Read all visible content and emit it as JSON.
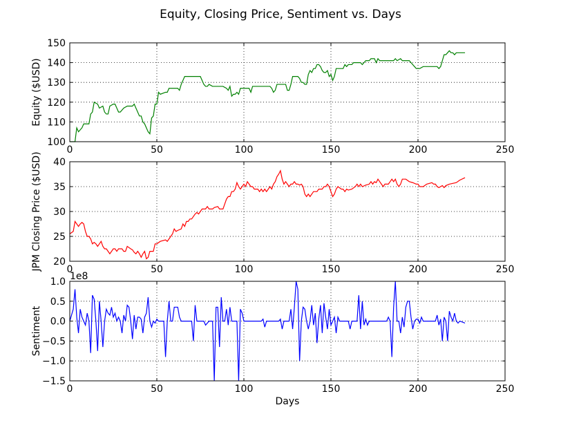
{
  "title": "Equity, Closing Price, Sentiment vs. Days",
  "chart_data": [
    {
      "type": "line",
      "ylabel": "Equity ($USD)",
      "xlim": [
        0,
        250
      ],
      "xticks": [
        0,
        50,
        100,
        150,
        200,
        250
      ],
      "ylim": [
        100,
        150
      ],
      "yticks": [
        100,
        110,
        120,
        130,
        140,
        150
      ],
      "grid": true,
      "series": [
        {
          "color": "#008000",
          "x": [
            0,
            3,
            4,
            5,
            7,
            8,
            11,
            12,
            13,
            14,
            16,
            17,
            19,
            20,
            21,
            22,
            23,
            25,
            26,
            27,
            28,
            29,
            31,
            33,
            36,
            37,
            38,
            40,
            41,
            42,
            43,
            44,
            45,
            46,
            47,
            48,
            49,
            50,
            51,
            52,
            55,
            56,
            57,
            62,
            63,
            64,
            66,
            75,
            76,
            77,
            78,
            79,
            80,
            82,
            88,
            90,
            91,
            92,
            93,
            94,
            95,
            96,
            97,
            98,
            102,
            103,
            104,
            105,
            115,
            116,
            117,
            118,
            119,
            124,
            125,
            126,
            127,
            128,
            131,
            132,
            133,
            134,
            135,
            136,
            137,
            138,
            139,
            140,
            141,
            142,
            143,
            144,
            145,
            146,
            147,
            148,
            149,
            150,
            151,
            152,
            153,
            157,
            158,
            159,
            160,
            162,
            163,
            167,
            168,
            170,
            172,
            173,
            175,
            176,
            177,
            178,
            186,
            187,
            188,
            190,
            191,
            195,
            196,
            197,
            198,
            199,
            200,
            201,
            203,
            210,
            211,
            212,
            213,
            214,
            215,
            216,
            217,
            218,
            219,
            220,
            221,
            222,
            227
          ],
          "values": [
            100,
            100,
            107,
            105,
            107,
            109,
            109,
            114,
            115,
            120,
            119,
            117,
            118,
            115,
            114,
            114,
            118,
            119,
            119,
            117,
            115,
            115,
            117,
            118,
            118,
            119,
            117,
            113,
            113,
            110,
            109,
            107,
            105,
            104,
            112,
            113,
            119,
            119,
            125,
            124,
            125,
            125,
            127,
            127,
            126,
            129,
            133,
            133,
            131,
            129,
            128,
            128,
            129,
            128,
            128,
            127,
            126,
            128,
            123,
            124,
            124,
            125,
            124,
            127,
            127,
            127,
            125,
            128,
            128,
            127,
            125,
            126,
            129,
            129,
            126,
            126,
            129,
            133,
            133,
            132,
            130,
            130,
            129,
            129,
            134,
            136,
            135,
            137,
            137,
            139,
            139,
            138,
            136,
            135,
            135,
            136,
            133,
            134,
            131,
            133,
            137,
            137,
            139,
            138,
            139,
            139,
            140,
            140,
            139,
            141,
            141,
            142,
            142,
            140,
            142,
            141,
            141,
            142,
            141,
            142,
            141,
            141,
            140,
            139,
            138,
            137,
            137,
            137,
            138,
            138,
            138,
            137,
            138,
            141,
            144,
            144,
            145,
            146,
            145,
            145,
            144,
            145,
            145
          ]
        }
      ]
    },
    {
      "type": "line",
      "ylabel": "JPM Closing Price ($USD)",
      "xlim": [
        0,
        250
      ],
      "xticks": [
        0,
        50,
        100,
        150,
        200,
        250
      ],
      "ylim": [
        20,
        40
      ],
      "yticks": [
        20,
        25,
        30,
        35,
        40
      ],
      "grid": true,
      "series": [
        {
          "color": "#ff0000",
          "x": [
            0,
            2,
            3,
            4,
            5,
            6,
            7,
            8,
            9,
            10,
            11,
            12,
            13,
            14,
            15,
            16,
            17,
            18,
            19,
            20,
            21,
            22,
            23,
            24,
            25,
            26,
            27,
            28,
            30,
            31,
            32,
            33,
            35,
            36,
            37,
            38,
            39,
            40,
            41,
            42,
            43,
            44,
            45,
            46,
            48,
            49,
            50,
            52,
            55,
            56,
            57,
            58,
            59,
            60,
            61,
            62,
            64,
            65,
            66,
            67,
            68,
            69,
            70,
            72,
            73,
            74,
            75,
            76,
            78,
            79,
            80,
            82,
            83,
            85,
            86,
            88,
            89,
            90,
            91,
            92,
            93,
            94,
            95,
            96,
            97,
            98,
            99,
            100,
            101,
            102,
            103,
            104,
            105,
            106,
            108,
            109,
            110,
            111,
            112,
            113,
            114,
            115,
            116,
            117,
            118,
            119,
            120,
            121,
            122,
            123,
            124,
            125,
            126,
            127,
            128,
            129,
            130,
            131,
            132,
            133,
            134,
            135,
            136,
            137,
            138,
            139,
            140,
            142,
            143,
            145,
            146,
            147,
            148,
            149,
            150,
            151,
            152,
            153,
            154,
            156,
            157,
            158,
            159,
            160,
            162,
            164,
            165,
            166,
            167,
            168,
            170,
            172,
            173,
            174,
            175,
            176,
            177,
            178,
            179,
            180,
            181,
            183,
            184,
            185,
            186,
            187,
            188,
            189,
            190,
            191,
            193,
            195,
            197,
            199,
            200,
            201,
            203,
            205,
            208,
            209,
            210,
            211,
            212,
            214,
            215,
            216,
            218,
            222,
            224,
            227
          ],
          "values": [
            25.5,
            26,
            28,
            27.5,
            27,
            27.5,
            27.8,
            27.5,
            26,
            25,
            25,
            24.5,
            23.5,
            23.8,
            23.5,
            23,
            23.5,
            24,
            23,
            22.5,
            22.5,
            22,
            21.5,
            22,
            22.5,
            22.5,
            22,
            22.5,
            22.5,
            22,
            22,
            23,
            22.5,
            22.3,
            21.8,
            21.5,
            22,
            21.5,
            20.8,
            21.5,
            22,
            20.5,
            20.8,
            22,
            22,
            23.5,
            23.5,
            24,
            24.3,
            24,
            24.5,
            25,
            25.5,
            26.5,
            26,
            26.2,
            26.5,
            27.5,
            27,
            28,
            28,
            28.5,
            28.5,
            29.5,
            29.8,
            29.5,
            30,
            30.5,
            30.5,
            31,
            30.5,
            30.5,
            30.8,
            31,
            30.5,
            30.5,
            31.5,
            32.5,
            33,
            33,
            34,
            34,
            34.5,
            35.8,
            35,
            34.5,
            35,
            35.5,
            35,
            36,
            35.5,
            35,
            35,
            34.5,
            34.5,
            34,
            34.5,
            34,
            34.5,
            34,
            34.5,
            35,
            34.5,
            35.5,
            36,
            37,
            37.5,
            38.2,
            36.5,
            35.5,
            36,
            35.5,
            35,
            35.5,
            35.5,
            36,
            35.5,
            35.5,
            35.3,
            35.5,
            35,
            33.5,
            33,
            33.5,
            33,
            33.5,
            34,
            34,
            34.5,
            34.5,
            35,
            35,
            35.5,
            35,
            34,
            33,
            33.5,
            34.5,
            35,
            34.5,
            34.5,
            34,
            34.5,
            34.3,
            34.5,
            35,
            35.5,
            35,
            35.5,
            35,
            35.3,
            35.5,
            36,
            35.5,
            36,
            35.8,
            36.5,
            36,
            35.5,
            35,
            35.5,
            35.5,
            36,
            36.5,
            36,
            36.5,
            35.5,
            35,
            35.5,
            36.5,
            36.5,
            36,
            35.8,
            35.5,
            35.5,
            35,
            35,
            35.5,
            35.8,
            35.5,
            35.5,
            35,
            34.8,
            35.2,
            34.8,
            35.2,
            35.5,
            35.8,
            36.3,
            36.8
          ]
        }
      ]
    },
    {
      "type": "line",
      "ylabel": "Sentiment",
      "xlabel": "Days",
      "y_offset_label": "1e8",
      "xlim": [
        0,
        250
      ],
      "xticks": [
        0,
        50,
        100,
        150,
        200,
        250
      ],
      "ylim": [
        -1.5,
        1.0
      ],
      "yticks": [
        {
          "value": -1.5,
          "label": "−1.5"
        },
        {
          "value": -1.0,
          "label": "−1.0"
        },
        {
          "value": -0.5,
          "label": "−0.5"
        },
        {
          "value": 0,
          "label": "0.0"
        },
        0.5,
        {
          "value": 1.0,
          "label": "1.0"
        }
      ],
      "grid": true,
      "series": [
        {
          "color": "#0000ff",
          "x": [
            0,
            2,
            3,
            4,
            5,
            6,
            7,
            8,
            9,
            10,
            11,
            12,
            13,
            14,
            15,
            16,
            17,
            18,
            19,
            20,
            21,
            22,
            23,
            24,
            25,
            26,
            27,
            28,
            29,
            30,
            31,
            32,
            33,
            34,
            35,
            36,
            37,
            38,
            39,
            40,
            41,
            42,
            43,
            44,
            45,
            46,
            47,
            48,
            49,
            50,
            51,
            54,
            55,
            56,
            57,
            58,
            59,
            60,
            62,
            63,
            64,
            70,
            71,
            72,
            73,
            77,
            78,
            80,
            82,
            83,
            84,
            85,
            86,
            87,
            88,
            89,
            90,
            91,
            92,
            93,
            96,
            97,
            98,
            99,
            100,
            110,
            111,
            112,
            113,
            120,
            121,
            122,
            123,
            126,
            127,
            128,
            129,
            130,
            131,
            132,
            133,
            134,
            135,
            136,
            137,
            138,
            139,
            140,
            141,
            142,
            143,
            144,
            145,
            146,
            147,
            148,
            149,
            150,
            151,
            152,
            153,
            154,
            155,
            160,
            161,
            162,
            165,
            166,
            167,
            168,
            169,
            170,
            171,
            172,
            180,
            182,
            183,
            184,
            185,
            186,
            187,
            188,
            189,
            190,
            191,
            192,
            193,
            194,
            195,
            196,
            197,
            198,
            199,
            200,
            201,
            202,
            203,
            210,
            211,
            212,
            213,
            214,
            215,
            216,
            217,
            218,
            219,
            220,
            221,
            222,
            223,
            224,
            227
          ],
          "values": [
            0,
            0.3,
            0.8,
            0.1,
            -0.3,
            0.3,
            0.1,
            0,
            -0.1,
            0.2,
            0,
            -0.8,
            0.65,
            0.55,
            0,
            -0.75,
            0.5,
            0,
            -0.65,
            0,
            0.3,
            0.2,
            0.15,
            0.35,
            0.1,
            0.2,
            0,
            0.1,
            0,
            -0.3,
            0.15,
            0,
            0.4,
            0.35,
            0,
            -0.45,
            0.15,
            -0.2,
            0.1,
            0.1,
            0.05,
            -0.3,
            0.1,
            0.2,
            0.6,
            0,
            -0.15,
            0,
            -0.05,
            0.05,
            0,
            0,
            -0.9,
            0,
            0.5,
            0,
            0,
            0.35,
            0.35,
            0.1,
            0,
            0,
            -0.5,
            0.4,
            0,
            0,
            -0.1,
            0,
            0,
            -1.5,
            0.35,
            0.35,
            -0.65,
            0.6,
            0,
            0,
            0.3,
            -0.1,
            0.35,
            0,
            0,
            -1.5,
            0.3,
            0.2,
            0,
            0,
            0.05,
            -0.15,
            0,
            0,
            0.05,
            -0.2,
            0,
            0,
            0.3,
            -0.2,
            0.35,
            1.0,
            0.8,
            -1.0,
            0,
            0.35,
            0.3,
            0,
            -0.2,
            0,
            0.4,
            -0.1,
            0.2,
            -0.55,
            0.05,
            0.4,
            -0.3,
            0.45,
            0.1,
            -0.2,
            0.3,
            -0.1,
            0,
            0.1,
            -0.3,
            0.1,
            0,
            0,
            -0.2,
            0,
            0,
            0.65,
            -0.2,
            0.5,
            -0.1,
            0.05,
            -0.1,
            0,
            0,
            0,
            0.1,
            0,
            -0.9,
            0.35,
            1.0,
            0,
            0,
            -0.3,
            0.1,
            -0.15,
            0.35,
            0.5,
            0.5,
            0.1,
            -0.2,
            0,
            0.05,
            0.05,
            -0.05,
            0.1,
            0,
            0,
            0.15,
            -0.1,
            0.05,
            -0.5,
            0.1,
            0,
            -0.5,
            0.25,
            0.1,
            0,
            0.2,
            0,
            -0.05,
            0,
            -0.05
          ]
        }
      ]
    }
  ]
}
